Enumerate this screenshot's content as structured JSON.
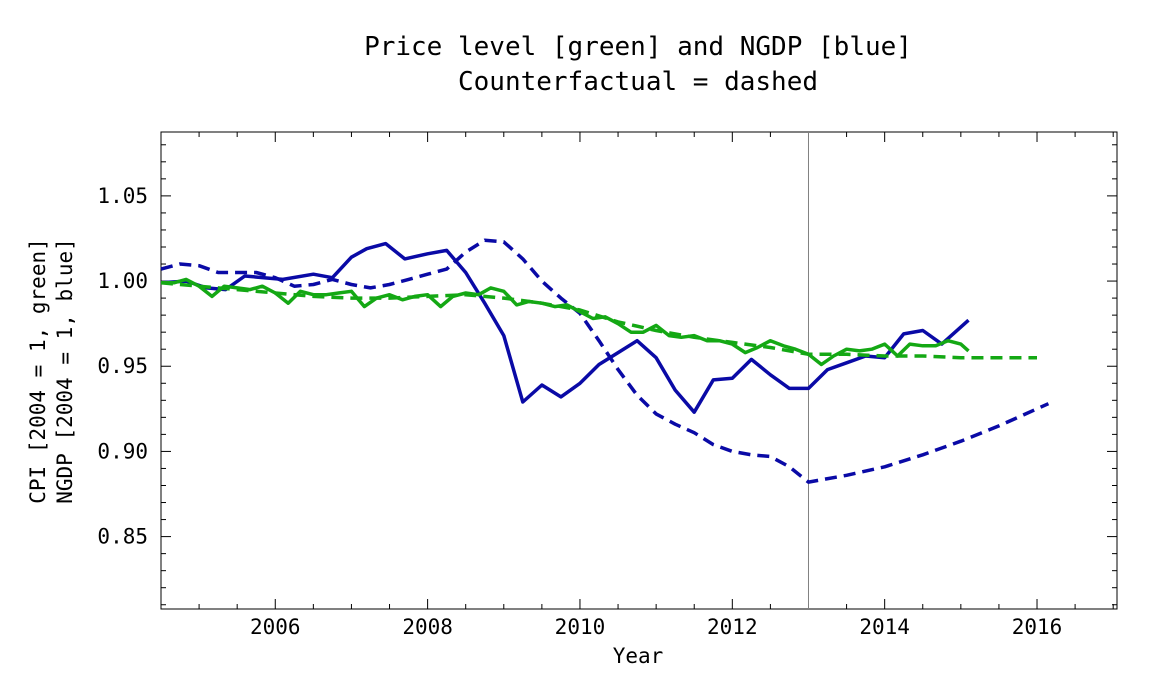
{
  "chart_data": {
    "type": "line",
    "title": "Price level [green] and NGDP [blue]",
    "subtitle": "Counterfactual = dashed",
    "xlabel": "Year",
    "ylabel": "CPI [2004 = 1, green]",
    "ylabel2": "NGDP [2004 = 1, blue]",
    "xlim": [
      2004.5,
      2017.05
    ],
    "ylim": [
      0.8075,
      1.0875
    ],
    "x_ticks": [
      2006,
      2008,
      2010,
      2012,
      2014,
      2016
    ],
    "y_ticks": [
      0.85,
      0.9,
      0.95,
      1.0,
      1.05
    ],
    "y_tick_labels": [
      "0.85",
      "0.90",
      "0.95",
      "1.00",
      "1.05"
    ],
    "grid": false,
    "vertical_marker_x": 2013.0,
    "colors": {
      "ngdp": "#0a0aa6",
      "cpi": "#14a814",
      "marker": "#808080"
    },
    "series": [
      {
        "style": "solid",
        "color": "#0a0aa6",
        "x": [
          2004.5,
          2004.83,
          2005.1,
          2005.35,
          2005.6,
          2005.85,
          2006.1,
          2006.5,
          2006.75,
          2007.0,
          2007.2,
          2007.45,
          2007.7,
          2008.0,
          2008.25,
          2008.5,
          2008.75,
          2009.0,
          2009.25,
          2009.5,
          2009.75,
          2010.0,
          2010.25,
          2010.5,
          2010.75,
          2011.0,
          2011.25,
          2011.5,
          2011.75,
          2012.0,
          2012.25,
          2012.5,
          2012.75,
          2013.0,
          2013.25,
          2013.5,
          2013.75,
          2014.0,
          2014.25,
          2014.5,
          2014.75,
          2015.1
        ],
        "y": [
          0.999,
          1.0,
          0.996,
          0.995,
          1.003,
          1.002,
          1.001,
          1.004,
          1.002,
          1.014,
          1.019,
          1.022,
          1.013,
          1.016,
          1.018,
          1.005,
          0.987,
          0.968,
          0.929,
          0.939,
          0.932,
          0.94,
          0.951,
          0.958,
          0.965,
          0.955,
          0.936,
          0.923,
          0.942,
          0.943,
          0.954,
          0.945,
          0.937,
          0.937,
          0.948,
          0.952,
          0.956,
          0.955,
          0.969,
          0.971,
          0.963,
          0.977
        ]
      },
      {
        "style": "dashed",
        "color": "#0a0aa6",
        "x": [
          2004.5,
          2004.75,
          2005.0,
          2005.25,
          2005.5,
          2005.75,
          2006.0,
          2006.25,
          2006.5,
          2006.75,
          2007.0,
          2007.25,
          2007.5,
          2007.75,
          2008.0,
          2008.25,
          2008.5,
          2008.75,
          2009.0,
          2009.25,
          2009.5,
          2009.75,
          2010.0,
          2010.25,
          2010.5,
          2010.75,
          2011.0,
          2011.25,
          2011.5,
          2011.75,
          2012.0,
          2012.25,
          2012.5,
          2012.75,
          2013.0,
          2013.5,
          2014.0,
          2014.5,
          2015.0,
          2015.5,
          2016.0,
          2016.15
        ],
        "y": [
          1.007,
          1.01,
          1.009,
          1.005,
          1.005,
          1.005,
          1.002,
          0.997,
          0.998,
          1.001,
          0.998,
          0.996,
          0.998,
          1.001,
          1.004,
          1.007,
          1.017,
          1.024,
          1.023,
          1.013,
          1.0,
          0.99,
          0.981,
          0.965,
          0.948,
          0.933,
          0.922,
          0.916,
          0.911,
          0.904,
          0.9,
          0.898,
          0.897,
          0.891,
          0.882,
          0.886,
          0.891,
          0.898,
          0.906,
          0.915,
          0.925,
          0.928
        ]
      },
      {
        "style": "solid",
        "color": "#14a814",
        "x": [
          2004.5,
          2004.67,
          2004.83,
          2005.0,
          2005.17,
          2005.33,
          2005.5,
          2005.67,
          2005.83,
          2006.0,
          2006.17,
          2006.33,
          2006.5,
          2006.67,
          2006.83,
          2007.0,
          2007.17,
          2007.33,
          2007.5,
          2007.67,
          2007.83,
          2008.0,
          2008.17,
          2008.33,
          2008.5,
          2008.67,
          2008.83,
          2009.0,
          2009.17,
          2009.33,
          2009.5,
          2009.67,
          2009.83,
          2010.0,
          2010.17,
          2010.33,
          2010.5,
          2010.67,
          2010.83,
          2011.0,
          2011.17,
          2011.33,
          2011.5,
          2011.67,
          2011.83,
          2012.0,
          2012.17,
          2012.33,
          2012.5,
          2012.67,
          2012.83,
          2013.0,
          2013.17,
          2013.33,
          2013.5,
          2013.67,
          2013.83,
          2014.0,
          2014.17,
          2014.33,
          2014.5,
          2014.67,
          2014.83,
          2015.0,
          2015.1
        ],
        "y": [
          0.999,
          0.999,
          1.001,
          0.997,
          0.991,
          0.997,
          0.996,
          0.995,
          0.997,
          0.993,
          0.987,
          0.994,
          0.992,
          0.992,
          0.993,
          0.994,
          0.985,
          0.99,
          0.992,
          0.989,
          0.991,
          0.992,
          0.985,
          0.991,
          0.993,
          0.992,
          0.996,
          0.994,
          0.986,
          0.988,
          0.987,
          0.985,
          0.986,
          0.982,
          0.978,
          0.979,
          0.975,
          0.97,
          0.97,
          0.974,
          0.968,
          0.967,
          0.968,
          0.965,
          0.965,
          0.963,
          0.958,
          0.961,
          0.965,
          0.962,
          0.96,
          0.957,
          0.951,
          0.956,
          0.96,
          0.959,
          0.96,
          0.963,
          0.956,
          0.963,
          0.962,
          0.962,
          0.965,
          0.963,
          0.959
        ]
      },
      {
        "style": "dashed",
        "color": "#14a814",
        "x": [
          2004.5,
          2005.0,
          2005.5,
          2006.0,
          2006.5,
          2007.0,
          2007.5,
          2008.0,
          2008.5,
          2009.0,
          2009.5,
          2010.0,
          2010.5,
          2011.0,
          2011.5,
          2012.0,
          2012.5,
          2013.0,
          2013.5,
          2014.0,
          2014.5,
          2015.0,
          2015.5,
          2016.0
        ],
        "y": [
          0.999,
          0.997,
          0.995,
          0.993,
          0.991,
          0.99,
          0.99,
          0.991,
          0.992,
          0.99,
          0.987,
          0.983,
          0.976,
          0.971,
          0.967,
          0.964,
          0.961,
          0.957,
          0.957,
          0.956,
          0.956,
          0.955,
          0.955,
          0.955
        ]
      }
    ]
  }
}
